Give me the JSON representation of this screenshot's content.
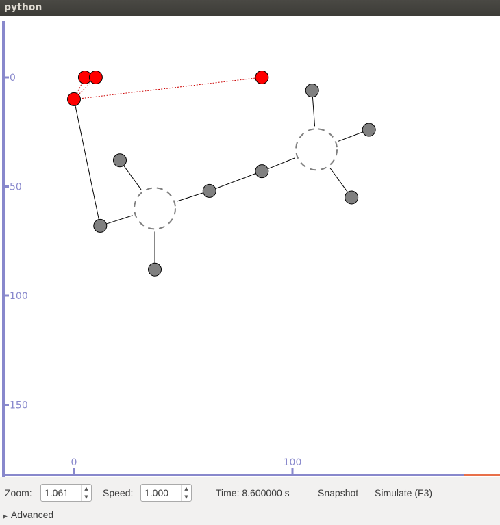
{
  "window": {
    "title": "python"
  },
  "axes": {
    "y_ticks": [
      {
        "value": 0,
        "label": "0"
      },
      {
        "value": 50,
        "label": "50"
      },
      {
        "value": 100,
        "label": "100"
      },
      {
        "value": 150,
        "label": "150"
      }
    ],
    "x_ticks": [
      {
        "value": 0,
        "label": "0"
      },
      {
        "value": 100,
        "label": "100"
      }
    ],
    "axis_color": "#8888cc"
  },
  "scene": {
    "colors": {
      "red_node": "#ff0000",
      "gray_node": "#808080",
      "link": "#000000",
      "red_link": "#cc0000",
      "dashed": "#808080"
    },
    "red_nodes": [
      {
        "x": 5,
        "y": 0
      },
      {
        "x": 10,
        "y": 0
      },
      {
        "x": 0,
        "y": 10
      },
      {
        "x": 86,
        "y": 0
      }
    ],
    "gray_nodes": [
      {
        "x": 21,
        "y": 38
      },
      {
        "x": 12,
        "y": 68
      },
      {
        "x": 37,
        "y": 88
      },
      {
        "x": 62,
        "y": 52
      },
      {
        "x": 86,
        "y": 43
      },
      {
        "x": 109,
        "y": 6
      },
      {
        "x": 135,
        "y": 24
      },
      {
        "x": 127,
        "y": 55
      }
    ],
    "hubs": [
      {
        "x": 37,
        "y": 60
      },
      {
        "x": 111,
        "y": 33
      }
    ]
  },
  "controls": {
    "zoom_label": "Zoom:",
    "zoom_value": "1.061",
    "speed_label": "Speed:",
    "speed_value": "1.000",
    "time_text": "Time: 8.600000 s",
    "snapshot_label": "Snapshot",
    "simulate_label": "Simulate (F3)",
    "advanced_label": "Advanced"
  }
}
